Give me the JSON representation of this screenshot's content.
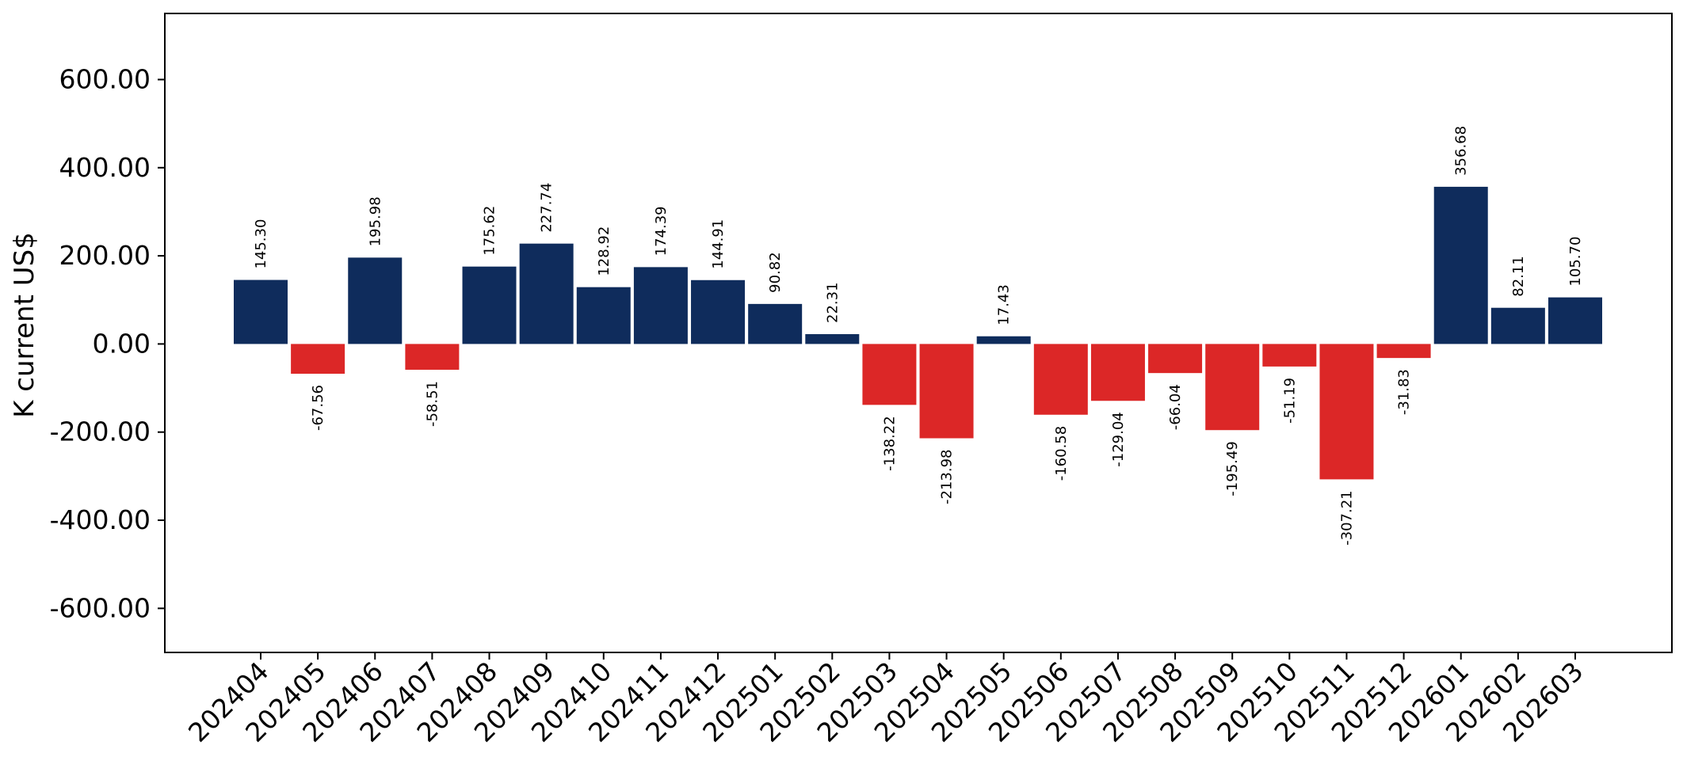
{
  "chart_data": {
    "type": "bar",
    "title": "",
    "xlabel": "",
    "ylabel": "K current US$",
    "ylim": [
      -700,
      750
    ],
    "yticks": [
      -600,
      -400,
      -200,
      0,
      200,
      400,
      600
    ],
    "ytick_labels": [
      "-600.00",
      "-400.00",
      "-200.00",
      "0.00",
      "200.00",
      "400.00",
      "600.00"
    ],
    "grid": false,
    "legend": "none",
    "colors": {
      "positive": "#0f2c5c",
      "negative": "#dc2727"
    },
    "categories": [
      "202404",
      "202405",
      "202406",
      "202407",
      "202408",
      "202409",
      "202410",
      "202411",
      "202412",
      "202501",
      "202502",
      "202503",
      "202504",
      "202505",
      "202506",
      "202507",
      "202508",
      "202509",
      "202510",
      "202511",
      "202512",
      "202601",
      "202602",
      "202603"
    ],
    "values": [
      145.3,
      -67.56,
      195.98,
      -58.51,
      175.62,
      227.74,
      128.92,
      174.39,
      144.91,
      90.82,
      22.31,
      -138.22,
      -213.98,
      17.43,
      -160.58,
      -129.04,
      -66.04,
      -195.49,
      -51.19,
      -307.21,
      -31.83,
      356.68,
      82.11,
      105.7
    ],
    "value_labels": [
      "145.30",
      "-67.56",
      "195.98",
      "-58.51",
      "175.62",
      "227.74",
      "128.92",
      "174.39",
      "144.91",
      "90.82",
      "22.31",
      "-138.22",
      "-213.98",
      "17.43",
      "-160.58",
      "-129.04",
      "-66.04",
      "-195.49",
      "-51.19",
      "-307.21",
      "-31.83",
      "356.68",
      "82.11",
      "105.70"
    ]
  }
}
